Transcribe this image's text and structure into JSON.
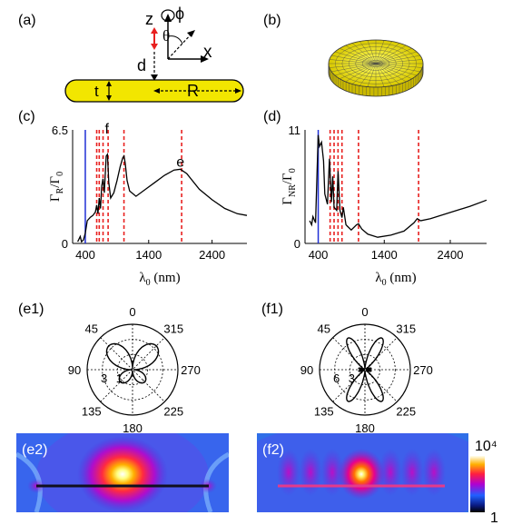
{
  "panel_labels": {
    "a": "(a)",
    "b": "(b)",
    "c": "(c)",
    "d": "(d)",
    "e1": "(e1)",
    "f1": "(f1)",
    "e2": "(e2)",
    "f2": "(f2)"
  },
  "geometry_labels": {
    "z": "z",
    "phi": "ϕ",
    "theta": "θ",
    "x": "x",
    "d": "d",
    "t": "t",
    "R": "R"
  },
  "colors": {
    "disk": "#f2e600",
    "spectrum_line": "#000000",
    "blue_line": "#1f2fd6",
    "red_dash": "#e8201f"
  },
  "chart_data": [
    {
      "id": "c",
      "type": "line",
      "xlabel": "λ0 (nm)",
      "ylabel": "ΓR/Γ0",
      "xlim": [
        200,
        2950
      ],
      "ylim": [
        0,
        6.5
      ],
      "x_ticks": [
        "400",
        "1400",
        "2400"
      ],
      "y_ticks": [
        "0",
        "6.5"
      ],
      "peak_labels": [
        {
          "text": "f",
          "x": 740,
          "y": 6.3
        },
        {
          "text": "e",
          "x": 1900,
          "y": 4.4
        }
      ],
      "blue_line_x": 400,
      "red_dashed_x": [
        580,
        620,
        680,
        760,
        1010,
        1920
      ],
      "series": [
        {
          "x": [
            280,
            320,
            340,
            370,
            400,
            430,
            480,
            520,
            560,
            580,
            600,
            620,
            640,
            660,
            680,
            700,
            730,
            750,
            770,
            800,
            850,
            900,
            950,
            990,
            1010,
            1030,
            1060,
            1100,
            1200,
            1350,
            1500,
            1650,
            1800,
            1900,
            2000,
            2200,
            2400,
            2600,
            2800,
            2950
          ],
          "y": [
            0.1,
            0.4,
            0.1,
            0.2,
            0.6,
            1.3,
            1.5,
            1.6,
            1.8,
            2.2,
            1.7,
            2.6,
            2.0,
            3.3,
            3.7,
            2.9,
            5.0,
            5.1,
            3.5,
            2.6,
            2.9,
            3.6,
            4.4,
            4.9,
            5.0,
            4.6,
            3.6,
            3.0,
            2.7,
            3.1,
            3.5,
            3.9,
            4.2,
            4.25,
            4.0,
            3.1,
            2.5,
            2.0,
            1.7,
            1.6
          ]
        }
      ]
    },
    {
      "id": "d",
      "type": "line",
      "xlabel": "λ0 (nm)",
      "ylabel": "ΓNR/Γ0",
      "xlim": [
        200,
        2950
      ],
      "ylim": [
        0,
        11
      ],
      "x_ticks": [
        "400",
        "1400",
        "2400"
      ],
      "y_ticks": [
        "0",
        "11"
      ],
      "blue_line_x": 400,
      "red_dashed_x": [
        580,
        640,
        700,
        760,
        1010,
        1920
      ],
      "series": [
        {
          "x": [
            270,
            300,
            320,
            360,
            400,
            420,
            450,
            480,
            500,
            540,
            570,
            600,
            620,
            640,
            680,
            700,
            730,
            760,
            780,
            820,
            900,
            980,
            1010,
            1060,
            1150,
            1300,
            1500,
            1700,
            1850,
            1900,
            1950,
            2100,
            2400,
            2700,
            2950
          ],
          "y": [
            2.2,
            1.8,
            2.6,
            2.0,
            10.5,
            9.4,
            9.8,
            8.0,
            4.8,
            3.8,
            8.2,
            4.0,
            6.5,
            3.5,
            3.2,
            7.0,
            3.2,
            2.5,
            3.5,
            1.8,
            1.3,
            1.8,
            1.9,
            1.4,
            0.9,
            0.6,
            0.8,
            1.2,
            2.0,
            2.4,
            2.2,
            2.4,
            3.0,
            3.6,
            4.2
          ]
        }
      ]
    },
    {
      "id": "e1",
      "type": "polar",
      "angle_labels": [
        "0",
        "315",
        "270",
        "225",
        "180",
        "135",
        "90",
        "45"
      ],
      "radial_labels": [
        "3",
        "1"
      ],
      "radial_max": 3
    },
    {
      "id": "f1",
      "type": "polar",
      "angle_labels": [
        "0",
        "315",
        "270",
        "225",
        "180",
        "135",
        "90",
        "45"
      ],
      "radial_labels": [
        "6",
        "3"
      ],
      "radial_max": 6
    },
    {
      "id": "colorbar",
      "type": "heatmap",
      "scale": "log",
      "range": [
        1,
        10000
      ],
      "labels": {
        "top": "10⁴",
        "bottom": "1"
      }
    }
  ]
}
